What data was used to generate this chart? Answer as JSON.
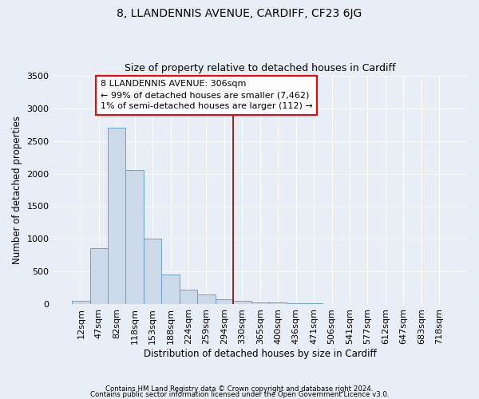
{
  "title": "8, LLANDENNIS AVENUE, CARDIFF, CF23 6JG",
  "subtitle": "Size of property relative to detached houses in Cardiff",
  "xlabel": "Distribution of detached houses by size in Cardiff",
  "ylabel": "Number of detached properties",
  "bar_labels": [
    "12sqm",
    "47sqm",
    "82sqm",
    "118sqm",
    "153sqm",
    "188sqm",
    "224sqm",
    "259sqm",
    "294sqm",
    "330sqm",
    "365sqm",
    "400sqm",
    "436sqm",
    "471sqm",
    "506sqm",
    "541sqm",
    "577sqm",
    "612sqm",
    "647sqm",
    "683sqm",
    "718sqm"
  ],
  "bar_values": [
    55,
    860,
    2700,
    2060,
    1005,
    455,
    230,
    155,
    75,
    55,
    35,
    25,
    20,
    15,
    0,
    0,
    0,
    0,
    0,
    0,
    0
  ],
  "bar_color": "#ccd9e8",
  "bar_edge_color": "#6ca0c8",
  "vline_color": "#990000",
  "annotation_text": "8 LLANDENNIS AVENUE: 306sqm\n← 99% of detached houses are smaller (7,462)\n1% of semi-detached houses are larger (112) →",
  "ylim": [
    0,
    3500
  ],
  "yticks": [
    0,
    500,
    1000,
    1500,
    2000,
    2500,
    3000,
    3500
  ],
  "bg_color": "#e8eef5",
  "plot_bg_color": "#e8eef5",
  "footer_line1": "Contains HM Land Registry data © Crown copyright and database right 2024.",
  "footer_line2": "Contains public sector information licensed under the Open Government Licence v3.0.",
  "title_fontsize": 10,
  "subtitle_fontsize": 9,
  "xlabel_fontsize": 8.5,
  "ylabel_fontsize": 8.5,
  "tick_fontsize": 8,
  "annotation_fontsize": 8
}
